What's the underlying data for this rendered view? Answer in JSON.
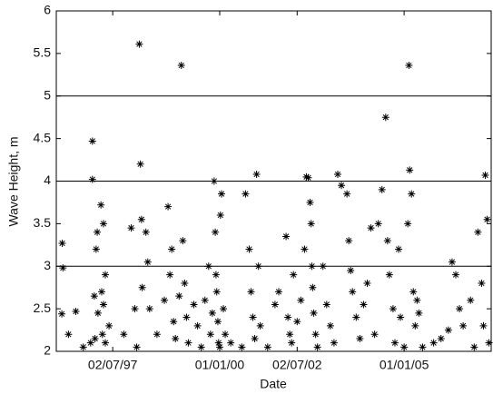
{
  "chart_data": {
    "type": "scatter",
    "xlabel": "Date",
    "ylabel": "Wave Height, m",
    "xlim": [
      1995.57,
      2007.36
    ],
    "ylim": [
      2,
      6
    ],
    "xticks": [
      {
        "value": 1997.1,
        "label": "02/07/97"
      },
      {
        "value": 2000.0,
        "label": "01/01/00"
      },
      {
        "value": 2002.1,
        "label": "02/07/02"
      },
      {
        "value": 2005.0,
        "label": "01/01/05"
      }
    ],
    "yticks": [
      2,
      2.5,
      3,
      3.5,
      4,
      4.5,
      5,
      5.5,
      6
    ],
    "reference_lines": [
      3,
      4,
      5
    ],
    "color": "#000000",
    "series": [
      {
        "x": [
          1995.73,
          1995.75,
          1995.72,
          1995.9,
          1996.1,
          1996.3,
          1996.5,
          1996.55,
          1996.55,
          1996.6,
          1996.62,
          1996.65,
          1996.68,
          1996.7,
          1996.78,
          1996.8,
          1996.82,
          1996.85,
          1996.85,
          1996.9,
          1996.9,
          1997.0,
          1997.4,
          1997.6,
          1997.7,
          1997.75,
          1997.82,
          1997.85,
          1997.88,
          1997.9,
          1998.0,
          1998.05,
          1998.1,
          1998.3,
          1998.5,
          1998.6,
          1998.65,
          1998.7,
          1998.75,
          1998.8,
          1998.9,
          1998.96,
          1999.0,
          1999.05,
          1999.1,
          1999.15,
          1999.3,
          1999.4,
          1999.5,
          1999.6,
          1999.7,
          1999.75,
          1999.8,
          1999.85,
          1999.88,
          1999.9,
          1999.92,
          1999.95,
          1999.97,
          2000.0,
          2000.02,
          2000.05,
          2000.1,
          2000.15,
          2000.3,
          2000.6,
          2000.7,
          2000.8,
          2000.85,
          2000.9,
          2000.95,
          2001.0,
          2001.05,
          2001.1,
          2001.3,
          2001.5,
          2001.6,
          2001.8,
          2001.85,
          2001.9,
          2001.95,
          2002.0,
          2002.1,
          2002.2,
          2002.3,
          2002.35,
          2002.4,
          2002.45,
          2002.48,
          2002.5,
          2002.52,
          2002.55,
          2002.6,
          2002.65,
          2002.8,
          2002.9,
          2003.0,
          2003.1,
          2003.2,
          2003.3,
          2003.45,
          2003.5,
          2003.55,
          2003.6,
          2003.7,
          2003.8,
          2003.9,
          2004.0,
          2004.1,
          2004.2,
          2004.3,
          2004.4,
          2004.5,
          2004.55,
          2004.6,
          2004.7,
          2004.75,
          2004.85,
          2004.9,
          2005.0,
          2005.1,
          2005.13,
          2005.15,
          2005.2,
          2005.25,
          2005.3,
          2005.35,
          2005.4,
          2005.5,
          2005.8,
          2006.0,
          2006.2,
          2006.3,
          2006.4,
          2006.5,
          2006.6,
          2006.8,
          2006.9,
          2007.0,
          2007.1,
          2007.15,
          2007.2,
          2007.25,
          2007.3
        ],
        "values": [
          3.27,
          2.98,
          2.44,
          2.2,
          2.47,
          2.05,
          2.1,
          4.47,
          4.02,
          2.65,
          2.15,
          3.2,
          3.4,
          2.45,
          3.72,
          2.7,
          2.2,
          2.55,
          3.5,
          2.9,
          2.1,
          2.3,
          2.2,
          3.45,
          2.5,
          2.05,
          5.61,
          4.2,
          3.55,
          2.75,
          3.4,
          3.05,
          2.5,
          2.2,
          2.6,
          3.7,
          2.9,
          3.2,
          2.35,
          2.15,
          2.65,
          5.36,
          3.3,
          2.8,
          2.4,
          2.1,
          2.55,
          2.3,
          2.05,
          2.6,
          3.0,
          2.2,
          2.45,
          4.0,
          3.4,
          2.9,
          2.7,
          2.35,
          2.1,
          2.05,
          3.6,
          3.85,
          2.5,
          2.2,
          2.1,
          2.05,
          3.85,
          3.2,
          2.7,
          2.4,
          2.15,
          4.08,
          3.0,
          2.3,
          2.05,
          2.55,
          2.7,
          3.35,
          2.4,
          2.2,
          2.1,
          2.9,
          2.35,
          2.6,
          3.2,
          4.05,
          4.04,
          3.75,
          3.5,
          3.0,
          2.75,
          2.45,
          2.2,
          2.05,
          3.0,
          2.55,
          2.3,
          2.1,
          4.08,
          3.95,
          3.85,
          3.3,
          2.95,
          2.7,
          2.4,
          2.15,
          2.55,
          2.8,
          3.45,
          2.2,
          3.5,
          3.9,
          4.75,
          3.3,
          2.9,
          2.5,
          2.1,
          3.2,
          2.4,
          2.05,
          3.5,
          5.36,
          4.13,
          3.85,
          2.7,
          2.3,
          2.6,
          2.45,
          2.05,
          2.1,
          2.15,
          2.25,
          3.05,
          2.9,
          2.5,
          2.3,
          2.6,
          2.05,
          3.4,
          2.8,
          2.3,
          4.07,
          3.55,
          2.1
        ]
      }
    ]
  }
}
